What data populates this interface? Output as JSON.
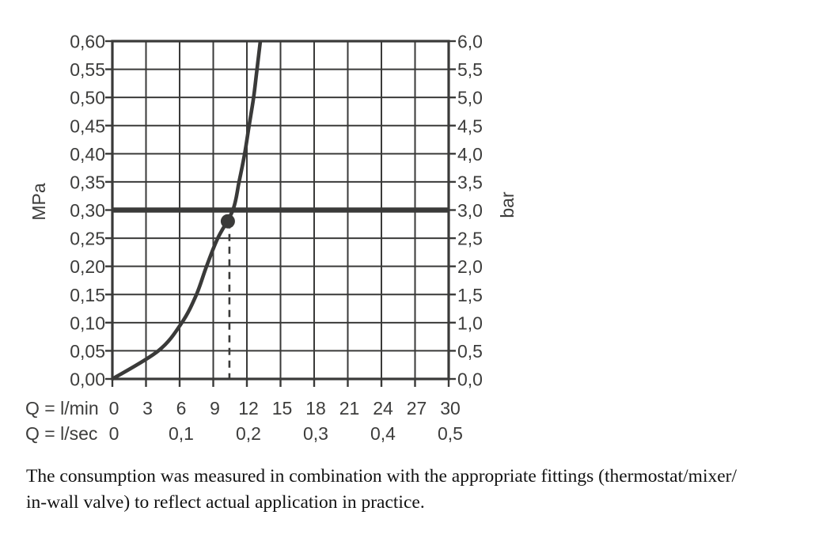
{
  "colors": {
    "ink": "#3a3a39",
    "label_text": "#3d3d3c",
    "caption_text": "#121212",
    "background": "#ffffff"
  },
  "chart_data": {
    "type": "line",
    "title": "",
    "grid": true,
    "xlim": [
      0,
      30
    ],
    "ylim": [
      0,
      0.6
    ],
    "x_axis": {
      "primary_label": "Q = l/min",
      "secondary_label": "Q = l/sec",
      "primary_ticks": [
        {
          "q": 0,
          "label": "0"
        },
        {
          "q": 3,
          "label": "3"
        },
        {
          "q": 6,
          "label": "6"
        },
        {
          "q": 9,
          "label": "9"
        },
        {
          "q": 12,
          "label": "12"
        },
        {
          "q": 15,
          "label": "15"
        },
        {
          "q": 18,
          "label": "18"
        },
        {
          "q": 21,
          "label": "21"
        },
        {
          "q": 24,
          "label": "24"
        },
        {
          "q": 27,
          "label": "27"
        },
        {
          "q": 30,
          "label": "30"
        }
      ],
      "secondary_ticks": [
        {
          "q": 0,
          "label": "0"
        },
        {
          "q": 6,
          "label": "0,1"
        },
        {
          "q": 12,
          "label": "0,2"
        },
        {
          "q": 18,
          "label": "0,3"
        },
        {
          "q": 24,
          "label": "0,4"
        },
        {
          "q": 30,
          "label": "0,5"
        }
      ]
    },
    "y_axis_left": {
      "unit": "MPa",
      "ticks": [
        {
          "v": 0.0,
          "label": "0,00"
        },
        {
          "v": 0.05,
          "label": "0,05"
        },
        {
          "v": 0.1,
          "label": "0,10"
        },
        {
          "v": 0.15,
          "label": "0,15"
        },
        {
          "v": 0.2,
          "label": "0,20"
        },
        {
          "v": 0.25,
          "label": "0,25"
        },
        {
          "v": 0.3,
          "label": "0,30"
        },
        {
          "v": 0.35,
          "label": "0,35"
        },
        {
          "v": 0.4,
          "label": "0,40"
        },
        {
          "v": 0.45,
          "label": "0,45"
        },
        {
          "v": 0.5,
          "label": "0,50"
        },
        {
          "v": 0.55,
          "label": "0,55"
        },
        {
          "v": 0.6,
          "label": "0,60"
        }
      ]
    },
    "y_axis_right": {
      "unit": "bar",
      "ticks": [
        {
          "v": 0.0,
          "label": "0,0"
        },
        {
          "v": 0.5,
          "label": "0,5"
        },
        {
          "v": 1.0,
          "label": "1,0"
        },
        {
          "v": 1.5,
          "label": "1,5"
        },
        {
          "v": 2.0,
          "label": "2,0"
        },
        {
          "v": 2.5,
          "label": "2,5"
        },
        {
          "v": 3.0,
          "label": "3,0"
        },
        {
          "v": 3.5,
          "label": "3,5"
        },
        {
          "v": 4.0,
          "label": "4,0"
        },
        {
          "v": 4.5,
          "label": "4,5"
        },
        {
          "v": 5.0,
          "label": "5,0"
        },
        {
          "v": 5.5,
          "label": "5,5"
        },
        {
          "v": 6.0,
          "label": "6,0"
        }
      ]
    },
    "reference_line": {
      "mpa": 0.3,
      "bar": 3.0
    },
    "marker": {
      "q_l_min": 10.3,
      "mpa": 0.28
    },
    "dashed_drop_line": {
      "q_l_min": 10.3
    },
    "series": [
      {
        "name": "flow-rate-curve",
        "points_q_mpa": [
          [
            0.0,
            0.0
          ],
          [
            4.1,
            0.05
          ],
          [
            6.2,
            0.1
          ],
          [
            7.5,
            0.15
          ],
          [
            8.4,
            0.2
          ],
          [
            9.4,
            0.25
          ],
          [
            10.75,
            0.3
          ],
          [
            11.3,
            0.35
          ],
          [
            11.8,
            0.4
          ],
          [
            12.2,
            0.45
          ],
          [
            12.6,
            0.5
          ],
          [
            12.9,
            0.55
          ],
          [
            13.2,
            0.6
          ]
        ]
      }
    ]
  },
  "caption": {
    "lines": [
      "The consumption was measured in combination with the appropriate fittings (thermostat/mixer/",
      "in-wall valve) to reflect actual application in practice."
    ]
  }
}
